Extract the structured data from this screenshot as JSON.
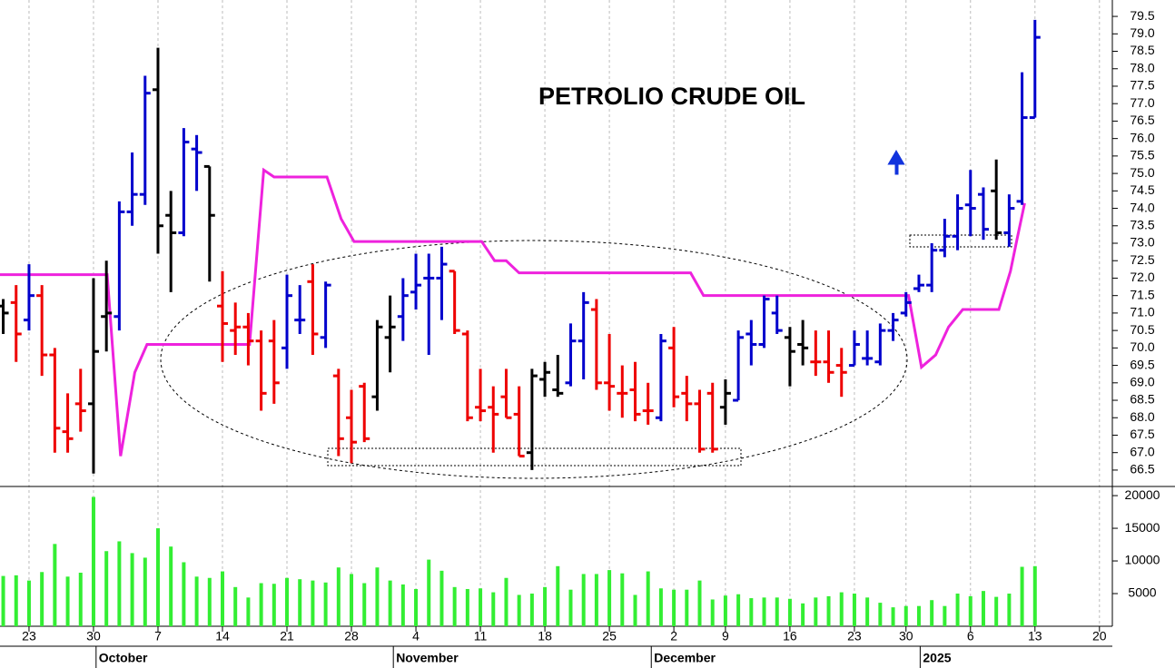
{
  "chart_data": [
    {
      "type": "ohlc",
      "title": "PETROLIO CRUDE OIL",
      "x": [
        -2,
        -1,
        0,
        1,
        2,
        3,
        4,
        5,
        6,
        7,
        8,
        9,
        10,
        11,
        12,
        13,
        14,
        15,
        16,
        17,
        18,
        19,
        20,
        21,
        22,
        23,
        24,
        25,
        26,
        27,
        28,
        29,
        30,
        31,
        32,
        33,
        34,
        35,
        36,
        37,
        38,
        39,
        40,
        41,
        42,
        43,
        44,
        45,
        46,
        47,
        48,
        49,
        50,
        51,
        52,
        53,
        54,
        55,
        56,
        57,
        58,
        59,
        60,
        61,
        62,
        63,
        64,
        65,
        66,
        67,
        68,
        69,
        70,
        71,
        72,
        73,
        74,
        75,
        76,
        77,
        78
      ],
      "open": [
        71.2,
        71.3,
        70.8,
        71.5,
        69.8,
        67.6,
        68.4,
        68.4,
        70.9,
        70.9,
        73.9,
        74.4,
        77.4,
        73.8,
        73.3,
        75.7,
        75.2,
        71.2,
        70.5,
        70.6,
        70.2,
        70.2,
        70.0,
        70.8,
        71.9,
        70.3,
        69.2,
        68.0,
        68.9,
        68.6,
        70.3,
        70.9,
        71.6,
        72.0,
        72.0,
        72.2,
        70.4,
        68.3,
        68.3,
        68.6,
        68.1,
        67.0,
        69.1,
        68.8,
        69.0,
        70.2,
        71.1,
        69.0,
        68.7,
        68.8,
        68.2,
        68.0,
        70.0,
        68.7,
        68.4,
        68.7,
        68.3,
        68.5,
        70.4,
        70.1,
        71.0,
        70.3,
        70.1,
        69.6,
        69.6,
        69.5,
        69.5,
        69.7,
        69.6,
        70.5,
        71.0,
        71.7,
        71.8,
        72.8,
        73.2,
        74.1,
        74.4,
        74.5,
        73.3,
        74.2,
        76.6
      ],
      "high": [
        71.4,
        71.8,
        72.4,
        71.8,
        70.0,
        68.7,
        69.4,
        72.0,
        72.5,
        74.2,
        75.6,
        77.8,
        78.6,
        74.5,
        76.3,
        76.1,
        75.2,
        72.2,
        71.3,
        71.0,
        70.5,
        70.8,
        72.1,
        71.8,
        72.4,
        71.9,
        69.4,
        68.8,
        69.0,
        70.8,
        71.5,
        72.0,
        72.7,
        72.7,
        72.9,
        72.2,
        70.5,
        69.4,
        68.9,
        69.4,
        68.9,
        69.4,
        69.6,
        69.8,
        70.7,
        71.6,
        71.4,
        70.4,
        69.5,
        69.6,
        69.0,
        70.4,
        70.6,
        69.2,
        68.8,
        69.0,
        69.1,
        70.5,
        70.8,
        71.5,
        71.5,
        70.6,
        70.8,
        70.5,
        70.5,
        70.0,
        70.5,
        70.5,
        70.7,
        71.0,
        71.6,
        72.1,
        73.0,
        73.7,
        74.4,
        75.1,
        74.6,
        75.4,
        74.4,
        77.9,
        79.4
      ],
      "low": [
        70.4,
        69.6,
        70.5,
        69.2,
        67.0,
        67.0,
        67.6,
        66.4,
        69.9,
        70.5,
        73.5,
        74.1,
        72.7,
        71.6,
        73.2,
        74.5,
        71.9,
        69.6,
        69.8,
        69.5,
        68.2,
        68.4,
        69.4,
        70.4,
        69.8,
        70.0,
        66.9,
        66.7,
        67.3,
        68.2,
        69.3,
        70.2,
        71.1,
        69.8,
        70.8,
        70.4,
        67.9,
        67.9,
        67.0,
        68.0,
        66.9,
        66.5,
        68.6,
        68.6,
        68.9,
        69.1,
        68.8,
        68.2,
        68.0,
        67.9,
        67.8,
        67.9,
        68.3,
        67.9,
        67.0,
        67.0,
        67.8,
        68.5,
        69.5,
        70.0,
        70.4,
        68.9,
        69.5,
        69.2,
        69.0,
        68.6,
        69.5,
        69.5,
        69.5,
        70.2,
        70.9,
        71.6,
        71.6,
        72.6,
        72.8,
        73.2,
        73.1,
        73.1,
        72.9,
        74.1,
        76.6
      ],
      "close": [
        71.0,
        70.4,
        71.5,
        69.8,
        67.7,
        67.4,
        68.2,
        69.9,
        71.0,
        73.9,
        74.4,
        77.3,
        73.5,
        73.3,
        75.9,
        75.6,
        73.8,
        70.7,
        70.6,
        70.2,
        68.7,
        69.0,
        71.5,
        70.8,
        70.4,
        71.8,
        67.4,
        67.3,
        67.4,
        70.6,
        70.6,
        71.5,
        71.8,
        72.0,
        72.4,
        70.5,
        68.0,
        68.2,
        68.1,
        68.0,
        66.9,
        69.2,
        69.3,
        68.7,
        70.2,
        71.3,
        69.0,
        68.9,
        68.7,
        68.1,
        68.2,
        70.2,
        68.6,
        68.4,
        67.1,
        67.1,
        68.7,
        70.3,
        70.1,
        71.4,
        70.5,
        69.9,
        70.0,
        69.6,
        69.3,
        69.3,
        70.1,
        69.7,
        70.5,
        70.8,
        71.3,
        71.8,
        72.8,
        73.2,
        74.0,
        74.0,
        73.4,
        73.3,
        74.0,
        76.6,
        78.9
      ],
      "colors": [
        "#000",
        "#e00",
        "#00c",
        "#e00",
        "#e00",
        "#e00",
        "#e00",
        "#000",
        "#000",
        "#00c",
        "#00c",
        "#00c",
        "#000",
        "#000",
        "#00c",
        "#00c",
        "#000",
        "#e00",
        "#e00",
        "#e00",
        "#e00",
        "#e00",
        "#00c",
        "#00c",
        "#e00",
        "#00c",
        "#e00",
        "#e00",
        "#e00",
        "#000",
        "#000",
        "#00c",
        "#00c",
        "#00c",
        "#00c",
        "#e00",
        "#e00",
        "#e00",
        "#e00",
        "#e00",
        "#e00",
        "#000",
        "#000",
        "#000",
        "#00c",
        "#00c",
        "#e00",
        "#e00",
        "#e00",
        "#e00",
        "#e00",
        "#00c",
        "#e00",
        "#e00",
        "#e00",
        "#e00",
        "#000",
        "#00c",
        "#00c",
        "#00c",
        "#00c",
        "#000",
        "#000",
        "#e00",
        "#e00",
        "#e00",
        "#00c",
        "#00c",
        "#00c",
        "#00c",
        "#00c",
        "#00c",
        "#00c",
        "#00c",
        "#00c",
        "#00c",
        "#00c",
        "#000",
        "#00c",
        "#00c",
        "#00c"
      ],
      "line": {
        "color": "#ee22dd",
        "x": [
          -2.25,
          6.06,
          7.1,
          8.2,
          9.15,
          17.1,
          18.2,
          19.0,
          23.1,
          24.2,
          25.2,
          35.1,
          36.1,
          37.0,
          38.0,
          51.3,
          52.3,
          68.2,
          69.2,
          70.3,
          71.3,
          72.4,
          75.2,
          76.1,
          76.6,
          77.2
        ],
        "values": [
          72.1,
          72.1,
          66.9,
          69.3,
          70.1,
          70.1,
          75.1,
          74.9,
          74.9,
          73.7,
          73.05,
          73.05,
          72.5,
          72.5,
          72.15,
          72.15,
          71.5,
          71.5,
          69.45,
          69.8,
          70.6,
          71.1,
          71.1,
          72.2,
          73.1,
          74.15
        ]
      },
      "xlim": [
        -2.25,
        84
      ],
      "ylim": [
        66.03,
        79.97
      ],
      "yticks": [
        66.5,
        {
          "value": 67,
          "label": "67.0"
        },
        67.5,
        {
          "value": 68,
          "label": "68.0"
        },
        68.5,
        {
          "value": 69,
          "label": "69.0"
        },
        69.5,
        {
          "value": 70,
          "label": "70.0"
        },
        70.5,
        {
          "value": 71,
          "label": "71.0"
        },
        71.5,
        {
          "value": 72,
          "label": "72.0"
        },
        72.5,
        {
          "value": 73,
          "label": "73.0"
        },
        73.5,
        {
          "value": 74,
          "label": "74.0"
        },
        74.5,
        {
          "value": 75,
          "label": "75.0"
        },
        75.5,
        {
          "value": 76,
          "label": "76.0"
        },
        76.5,
        {
          "value": 77,
          "label": "77.0"
        },
        77.5,
        {
          "value": 78,
          "label": "78.0"
        },
        78.5,
        {
          "value": 79,
          "label": "79.0"
        },
        79.5
      ],
      "xticks": [
        {
          "value": 0,
          "label": "23"
        },
        {
          "value": 5,
          "label": "30"
        },
        {
          "value": 10,
          "label": "7"
        },
        {
          "value": 15,
          "label": "14"
        },
        {
          "value": 20,
          "label": "21"
        },
        {
          "value": 25,
          "label": "28"
        },
        {
          "value": 30,
          "label": "4"
        },
        {
          "value": 35,
          "label": "11"
        },
        {
          "value": 40,
          "label": "18"
        },
        {
          "value": 45,
          "label": "25"
        },
        {
          "value": 50,
          "label": "2"
        },
        {
          "value": 54,
          "label": "9"
        },
        {
          "value": 59,
          "label": "16"
        },
        {
          "value": 64,
          "label": "23"
        },
        {
          "value": 68,
          "label": "30"
        },
        {
          "value": 73,
          "label": "6"
        },
        {
          "value": 78,
          "label": "13"
        },
        {
          "value": 83,
          "label": "20"
        }
      ],
      "months": [
        {
          "label": "October",
          "x": 5.2
        },
        {
          "label": "November",
          "x": 28.25
        },
        {
          "label": "December",
          "x": 48.25
        },
        {
          "label": "2025",
          "x": 69.1
        }
      ],
      "grid": true
    },
    {
      "type": "bar",
      "color": "#33ee33",
      "values": [
        7700,
        7800,
        7000,
        8300,
        12600,
        7600,
        8200,
        19800,
        11500,
        13000,
        11200,
        10500,
        15000,
        12200,
        9800,
        7600,
        7400,
        8400,
        6000,
        4400,
        6600,
        6500,
        7400,
        7200,
        7000,
        6700,
        9000,
        8000,
        6600,
        9000,
        7000,
        6400,
        5700,
        10200,
        8500,
        6000,
        5700,
        5800,
        5200,
        7400,
        4800,
        5000,
        6000,
        9200,
        5600,
        8000,
        8000,
        8600,
        8100,
        4800,
        8400,
        5800,
        5600,
        5600,
        7000,
        4100,
        4700,
        4900,
        4300,
        4400,
        4400,
        4200,
        3500,
        4400,
        4600,
        5200,
        5000,
        4400,
        3600,
        2900,
        3100,
        3100,
        4000,
        3100,
        5000,
        4600,
        5400,
        4500,
        5000,
        9100,
        9200
      ],
      "ylim": [
        0,
        21400
      ],
      "yticks": [
        5000,
        10000,
        15000,
        20000
      ]
    }
  ]
}
